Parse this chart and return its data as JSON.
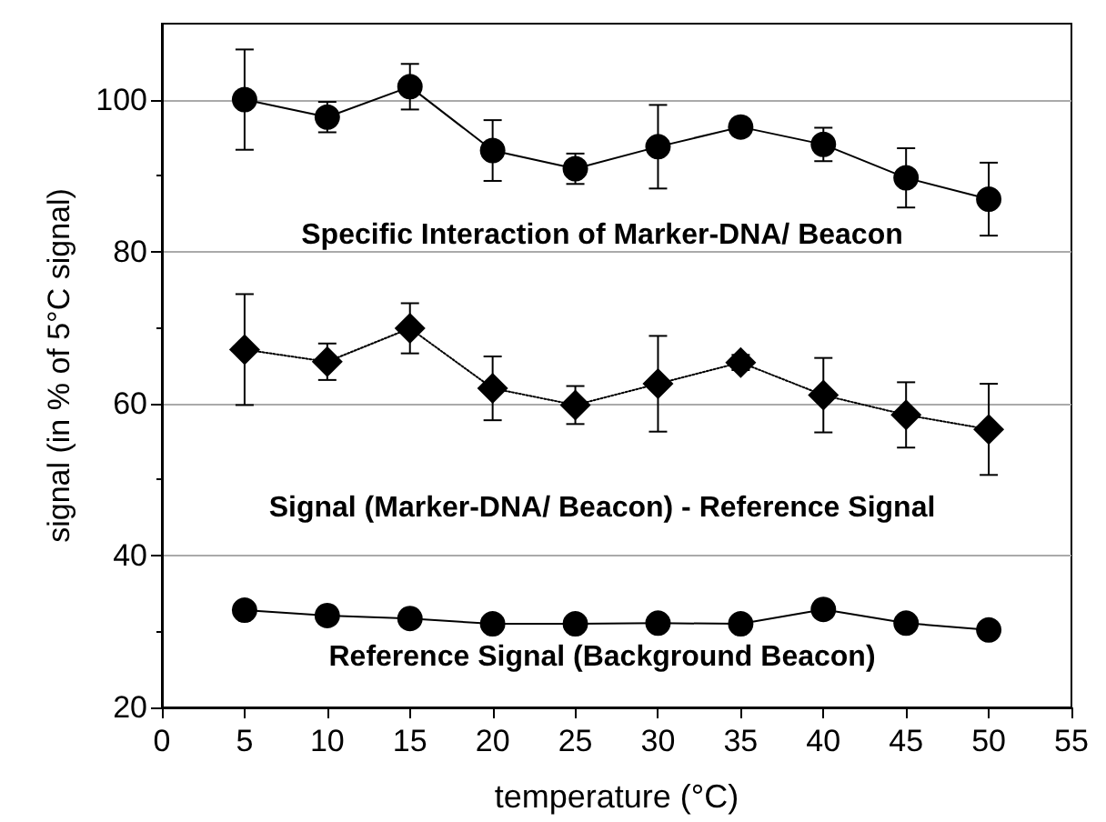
{
  "chart_data": {
    "type": "line",
    "xlabel": "temperature (°C)",
    "ylabel": "signal (in % of 5°C signal)",
    "x": [
      5,
      10,
      15,
      20,
      25,
      30,
      35,
      40,
      45,
      50
    ],
    "series": [
      {
        "name": "Specific Interaction of Marker-DNA/ Beacon",
        "color": "#000000",
        "marker": "circle",
        "line_style": "solid",
        "values": [
          100,
          97.7,
          101.7,
          93.3,
          90.9,
          93.8,
          96.4,
          94.1,
          89.7,
          86.9
        ],
        "errors": [
          6.6,
          2,
          3,
          4,
          2,
          5.5,
          1,
          2.2,
          3.9,
          4.8
        ]
      },
      {
        "name": "Signal (Marker-DNA/ Beacon) - Reference Signal",
        "color": "#000000",
        "marker": "diamond",
        "line_style": "dotted",
        "values": [
          67.1,
          65.5,
          69.9,
          62.0,
          59.8,
          62.6,
          65.4,
          61.1,
          58.5,
          56.6
        ],
        "errors": [
          7.3,
          2.4,
          3.3,
          4.2,
          2.5,
          6.3,
          1,
          4.9,
          4.3,
          6
        ]
      },
      {
        "name": "Reference Signal (Background Beacon)",
        "color": "#000000",
        "marker": "circle",
        "line_style": "solid",
        "values": [
          32.8,
          32.1,
          31.7,
          31.0,
          31.0,
          31.1,
          31.0,
          32.9,
          31.1,
          30.2
        ]
      }
    ],
    "xlim": [
      0,
      55
    ],
    "xticks": [
      0,
      5,
      10,
      15,
      20,
      25,
      30,
      35,
      40,
      45,
      50,
      55
    ],
    "ylim": [
      20,
      110
    ],
    "yticks": [
      20,
      40,
      60,
      80,
      100
    ],
    "grid": "y",
    "legend": false
  }
}
